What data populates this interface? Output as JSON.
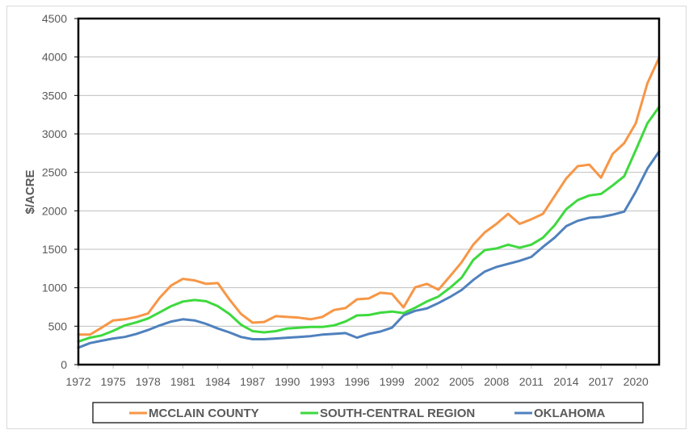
{
  "chart_data": {
    "type": "line",
    "title": "",
    "xlabel": "",
    "ylabel": "$/ACRE",
    "ylim": [
      0,
      4500
    ],
    "xlim": [
      1972,
      2022
    ],
    "yticks": [
      0,
      500,
      1000,
      1500,
      2000,
      2500,
      3000,
      3500,
      4000,
      4500
    ],
    "xticks": [
      1972,
      1975,
      1978,
      1981,
      1984,
      1987,
      1990,
      1993,
      1996,
      1999,
      2002,
      2005,
      2008,
      2011,
      2014,
      2017,
      2020
    ],
    "grid": "horizontal",
    "legend_position": "bottom",
    "x": [
      1972,
      1973,
      1974,
      1975,
      1976,
      1977,
      1978,
      1979,
      1980,
      1981,
      1982,
      1983,
      1984,
      1985,
      1986,
      1987,
      1988,
      1989,
      1990,
      1991,
      1992,
      1993,
      1994,
      1995,
      1996,
      1997,
      1998,
      1999,
      2000,
      2001,
      2002,
      2003,
      2004,
      2005,
      2006,
      2007,
      2008,
      2009,
      2010,
      2011,
      2012,
      2013,
      2014,
      2015,
      2016,
      2017,
      2018,
      2019,
      2020,
      2021,
      2022
    ],
    "series": [
      {
        "name": "MCCLAIN COUNTY",
        "color": "#f79646",
        "values": [
          390,
          390,
          480,
          575,
          590,
          620,
          665,
          870,
          1030,
          1115,
          1095,
          1050,
          1060,
          850,
          660,
          545,
          555,
          630,
          620,
          610,
          590,
          620,
          710,
          735,
          850,
          860,
          935,
          920,
          745,
          1005,
          1050,
          975,
          1150,
          1330,
          1560,
          1720,
          1830,
          1960,
          1830,
          1890,
          1960,
          2190,
          2420,
          2580,
          2600,
          2430,
          2740,
          2880,
          3140,
          3660,
          3990
        ]
      },
      {
        "name": "SOUTH-CENTRAL REGION",
        "color": "#3ed93e",
        "values": [
          300,
          350,
          380,
          440,
          510,
          550,
          600,
          680,
          760,
          820,
          840,
          825,
          760,
          660,
          520,
          435,
          420,
          435,
          470,
          480,
          490,
          490,
          510,
          560,
          640,
          645,
          675,
          690,
          670,
          740,
          820,
          885,
          1000,
          1130,
          1360,
          1490,
          1510,
          1560,
          1520,
          1560,
          1650,
          1810,
          2020,
          2140,
          2200,
          2220,
          2330,
          2450,
          2790,
          3140,
          3350
        ]
      },
      {
        "name": "OKLAHOMA",
        "color": "#4f81bd",
        "values": [
          220,
          280,
          310,
          340,
          360,
          400,
          450,
          510,
          560,
          590,
          575,
          530,
          470,
          420,
          360,
          330,
          330,
          340,
          350,
          360,
          370,
          390,
          400,
          410,
          350,
          400,
          430,
          480,
          640,
          700,
          730,
          800,
          880,
          970,
          1100,
          1210,
          1270,
          1310,
          1350,
          1400,
          1530,
          1650,
          1800,
          1870,
          1910,
          1920,
          1950,
          1990,
          2250,
          2550,
          2770
        ]
      }
    ]
  }
}
